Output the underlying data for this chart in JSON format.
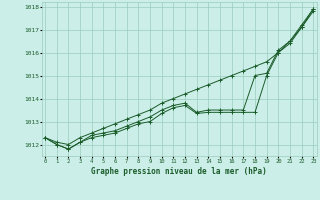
{
  "title": "Graphe pression niveau de la mer (hPa)",
  "bg_color": "#cceee8",
  "grid_color": "#99ccbb",
  "line_color": "#1a5c2a",
  "x_labels": [
    "0",
    "1",
    "2",
    "3",
    "4",
    "5",
    "6",
    "7",
    "8",
    "9",
    "10",
    "11",
    "12",
    "13",
    "14",
    "15",
    "16",
    "17",
    "18",
    "19",
    "20",
    "21",
    "22",
    "23"
  ],
  "ylim": [
    1011.5,
    1018.2
  ],
  "yticks": [
    1012,
    1013,
    1014,
    1015,
    1016,
    1017,
    1018
  ],
  "series_diagonal": [
    1012.3,
    1012.1,
    1012.0,
    1012.3,
    1012.5,
    1012.7,
    1012.9,
    1013.1,
    1013.3,
    1013.5,
    1013.8,
    1014.0,
    1014.2,
    1014.4,
    1014.6,
    1014.8,
    1015.0,
    1015.2,
    1015.4,
    1015.6,
    1016.0,
    1016.5,
    1017.1,
    1017.9
  ],
  "series_flat": [
    1012.3,
    1012.0,
    1011.8,
    1012.1,
    1012.3,
    1012.4,
    1012.5,
    1012.7,
    1012.9,
    1013.0,
    1013.35,
    1013.6,
    1013.7,
    1013.35,
    1013.4,
    1013.4,
    1013.4,
    1013.4,
    1013.4,
    1015.0,
    1016.0,
    1016.4,
    1017.1,
    1017.8
  ],
  "series_mid": [
    1012.3,
    1012.0,
    1011.8,
    1012.1,
    1012.4,
    1012.5,
    1012.6,
    1012.8,
    1013.0,
    1013.2,
    1013.5,
    1013.7,
    1013.8,
    1013.4,
    1013.5,
    1013.5,
    1013.5,
    1013.5,
    1015.0,
    1015.1,
    1016.1,
    1016.5,
    1017.2,
    1017.9
  ]
}
